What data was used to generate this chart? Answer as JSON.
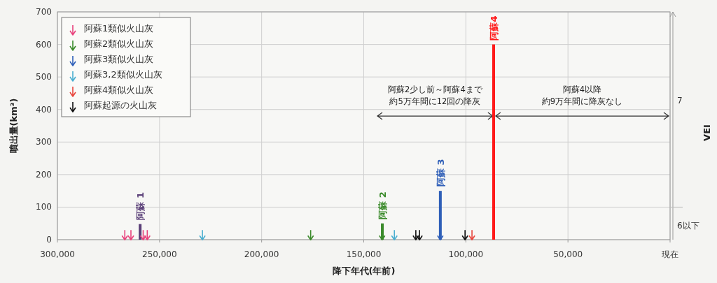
{
  "chart_data": {
    "type": "bar",
    "xlabel": "降下年代(年前)",
    "ylabel": "噴出量(km³)",
    "y2label": "VEI",
    "xlim": [
      300000,
      0
    ],
    "xticks": [
      {
        "value": 300000,
        "label": "300,000"
      },
      {
        "value": 250000,
        "label": "250,000"
      },
      {
        "value": 200000,
        "label": "200,000"
      },
      {
        "value": 150000,
        "label": "150,000"
      },
      {
        "value": 100000,
        "label": "100,000"
      },
      {
        "value": 50000,
        "label": "50,000"
      },
      {
        "value": 0,
        "label": "現在"
      }
    ],
    "ylim": [
      0,
      700
    ],
    "yticks": [
      0,
      100,
      200,
      300,
      400,
      500,
      600,
      700
    ],
    "grid": true,
    "legend": "top left",
    "series": [
      {
        "name": "阿蘇 1",
        "color": "#5a3f78",
        "x": [
          259500
        ],
        "values": [
          48
        ]
      },
      {
        "name": "阿蘇 2",
        "color": "#3a8a2a",
        "x": [
          140900
        ],
        "values": [
          50
        ]
      },
      {
        "name": "阿蘇 3",
        "color": "#2f5fb8",
        "x": [
          112500
        ],
        "values": [
          150
        ]
      },
      {
        "name": "阿蘇4",
        "color": "#ff1a1a",
        "x": [
          86400
        ],
        "values": [
          600
        ]
      },
      {
        "type": "scatter",
        "name": "阿蘇1類似火山灰",
        "color": "#e8427c",
        "x": [
          267000,
          264000,
          258000,
          256000
        ],
        "values": [
          6,
          6,
          6,
          6
        ]
      },
      {
        "type": "scatter",
        "name": "阿蘇2類似火山灰",
        "color": "#3a8a2a",
        "x": [
          176000,
          141000
        ],
        "values": [
          6,
          6
        ]
      },
      {
        "type": "scatter",
        "name": "阿蘇3類似火山灰",
        "color": "#2f5fb8",
        "x": [
          112500
        ],
        "values": [
          6
        ]
      },
      {
        "type": "scatter",
        "name": "阿蘇3,2類似火山灰",
        "color": "#4aaed0",
        "x": [
          229000,
          135000
        ],
        "values": [
          6,
          6
        ]
      },
      {
        "type": "scatter",
        "name": "阿蘇4類似火山灰",
        "color": "#e8453c",
        "x": [
          97000
        ],
        "values": [
          6
        ]
      },
      {
        "type": "scatter",
        "name": "阿蘇起源の火山灰",
        "color": "#111111",
        "x": [
          124500,
          122700,
          100400
        ],
        "values": [
          6,
          6,
          6
        ]
      }
    ],
    "annotations": [
      "阿蘇2少し前～阿蘇4まで",
      "約5万年間に12回の降灰",
      "阿蘇4以降",
      "約9万年間に降灰なし",
      "7",
      "6以下"
    ]
  }
}
